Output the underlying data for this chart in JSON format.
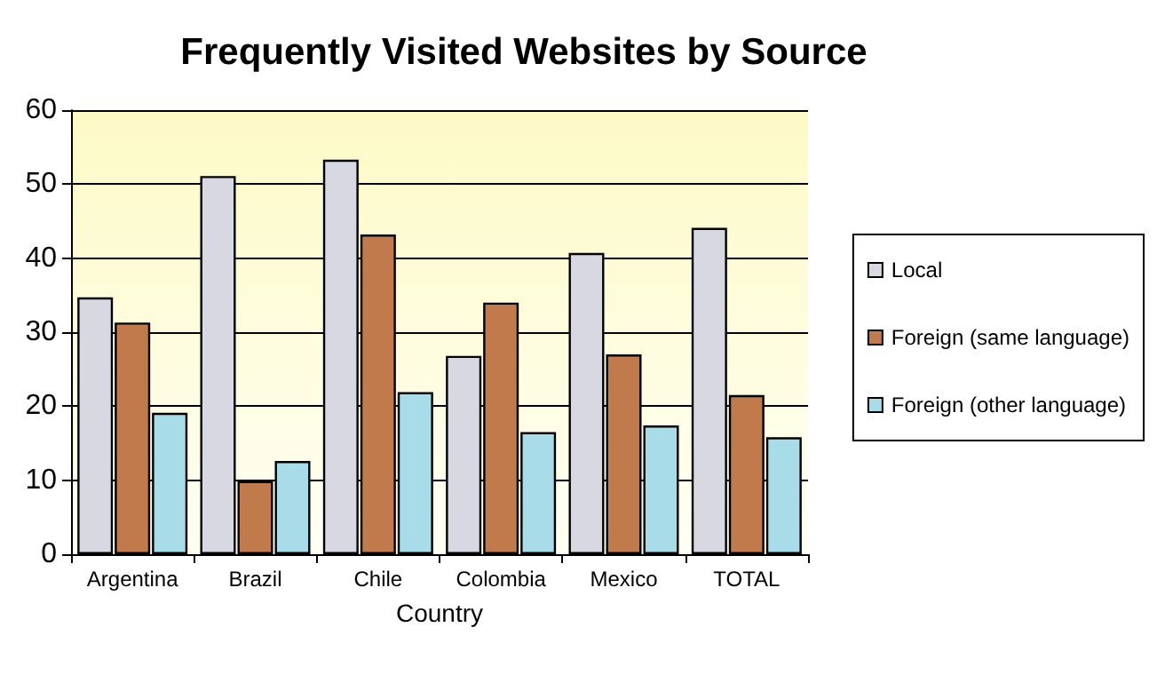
{
  "chart_data": {
    "type": "bar",
    "title": "Frequently Visited Websites by Source",
    "xlabel": "Country",
    "categories": [
      "Argentina",
      "Brazil",
      "Chile",
      "Colombia",
      "Mexico",
      "TOTAL"
    ],
    "series": [
      {
        "name": "Local",
        "color": "#d8d8e2",
        "values": [
          34.7,
          51.1,
          53.3,
          26.8,
          40.7,
          44.1
        ]
      },
      {
        "name": "Foreign (same language)",
        "color": "#c07a4c",
        "values": [
          31.3,
          9.9,
          43.2,
          34.0,
          27.0,
          21.5
        ]
      },
      {
        "name": "Foreign (other language)",
        "color": "#a8dce8",
        "values": [
          19.1,
          12.6,
          21.9,
          16.5,
          17.4,
          15.8
        ]
      }
    ],
    "ylim": [
      0,
      60
    ],
    "yticks": [
      0,
      10,
      20,
      30,
      40,
      50,
      60
    ],
    "grid": "y",
    "legend": "right"
  }
}
